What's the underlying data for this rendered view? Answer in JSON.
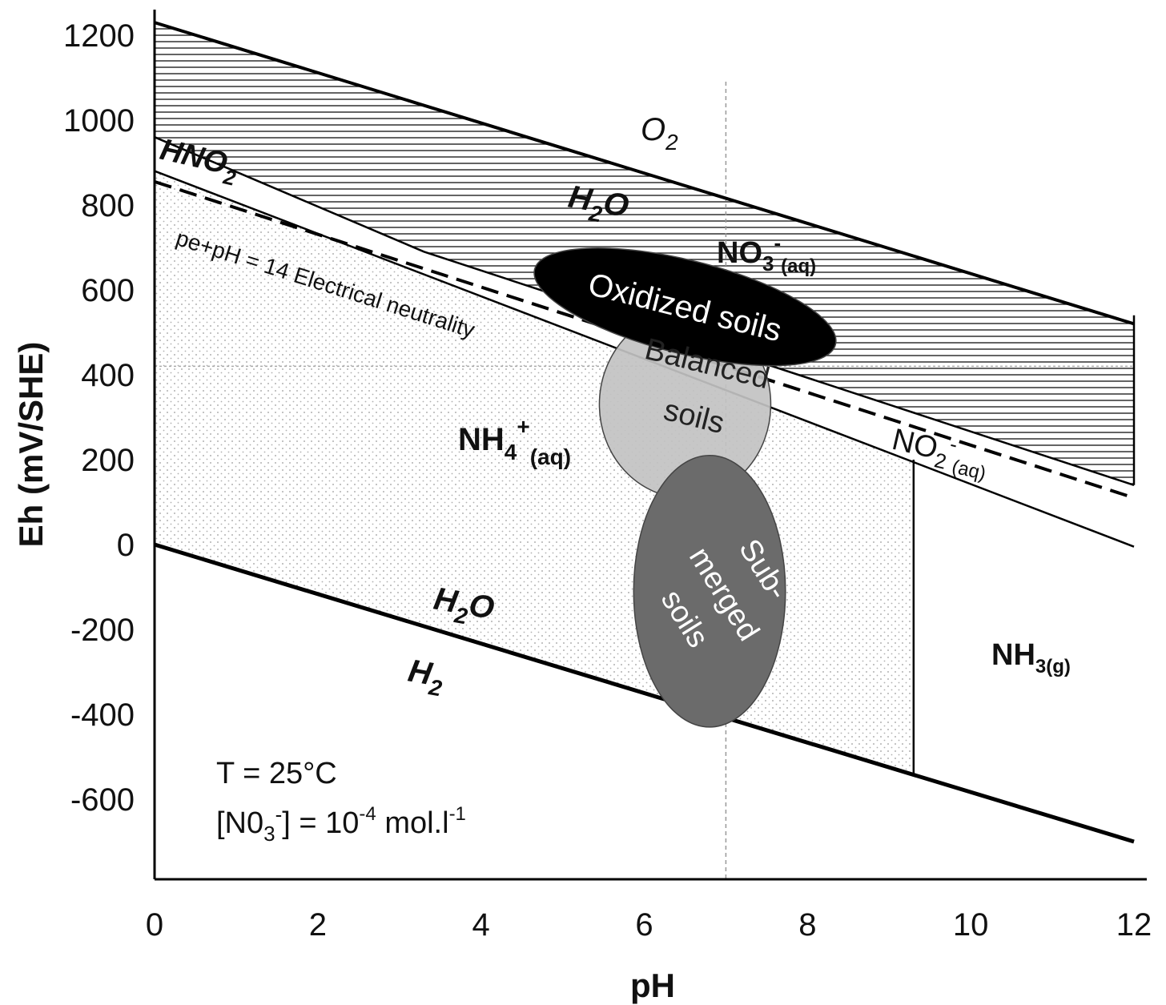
{
  "chart_data": {
    "type": "line",
    "xlabel": "pH",
    "ylabel": "Eh (mV/SHE)",
    "xlim": [
      0,
      12
    ],
    "ylim": [
      -800,
      1260
    ],
    "xticks": [
      "0",
      "2",
      "4",
      "6",
      "8",
      "10",
      "12"
    ],
    "yticks": [
      "1200",
      "1000",
      "800",
      "600",
      "400",
      "200",
      "0",
      "-200",
      "-400",
      "-600"
    ],
    "reference_lines": {
      "x": 7,
      "y": 420
    },
    "boundaries": [
      {
        "x": [
          0,
          12
        ],
        "y": [
          1230,
          520
        ]
      },
      {
        "x": [
          0,
          12
        ],
        "y": [
          0,
          -700
        ]
      },
      {
        "x": [
          0,
          3.3,
          12
        ],
        "y": [
          960,
          690,
          140
        ]
      },
      {
        "x": [
          0,
          12
        ],
        "y": [
          880,
          -5
        ]
      },
      {
        "x": [
          0,
          12
        ],
        "y": [
          855,
          110
        ],
        "style": "dashed"
      },
      {
        "x": [
          9.3,
          9.3
        ],
        "y": [
          -540,
          200
        ]
      },
      {
        "x": [
          12,
          12
        ],
        "y": [
          540,
          140
        ]
      }
    ],
    "regions": [
      {
        "name": "oxidized",
        "center": [
          6.5,
          560
        ],
        "rx_ph": 1.9,
        "ry_mv": 110,
        "rotate_deg": 14,
        "fill": "#000000",
        "label": "Oxidized soils"
      },
      {
        "name": "balanced",
        "center": [
          6.5,
          330
        ],
        "rx_ph": 1.05,
        "ry_mv": 220,
        "rotate_deg": 0,
        "fill": "#c2c2c2",
        "label_lines": [
          "Balanced",
          "soils"
        ]
      },
      {
        "name": "submerged",
        "center": [
          6.8,
          -110
        ],
        "rx_ph": 0.93,
        "ry_mv": 320,
        "rotate_deg": 0,
        "fill": "#6b6b6b",
        "label_lines": [
          "Sub-",
          "merged",
          "soils"
        ]
      }
    ],
    "labels": {
      "o2": "O",
      "o2_sub": "2",
      "h2o_top": "H",
      "h2o_top_sub": "2",
      "h2o_top_tail": "O",
      "hno2": "HNO",
      "hno2_sub": "2",
      "no3": "NO",
      "no3_sub": "3",
      "no3_sup": "-",
      "no3_phase": "(aq)",
      "electroneutral": "pe+pH = 14  Electrical neutrality",
      "nh4": "NH",
      "nh4_sub": "4",
      "nh4_sup": "+",
      "nh4_phase": "(aq)",
      "no2": "NO",
      "no2_sub": "2",
      "no2_sup": "-",
      "no2_phase": "(aq)",
      "h2o_bottom": "H",
      "h2o_bottom_sub": "2",
      "h2o_bottom_tail": "O",
      "h2": "H",
      "h2_sub": "2",
      "nh3": "NH",
      "nh3_sub": "3(g)",
      "temperature": "T = 25°C",
      "conc_open": "[N0",
      "conc_sub": "3",
      "conc_sup": "-",
      "conc_mid": "] = 10",
      "conc_exp": "-4",
      "conc_unit": " mol.l",
      "conc_unit_exp": "-1"
    }
  }
}
